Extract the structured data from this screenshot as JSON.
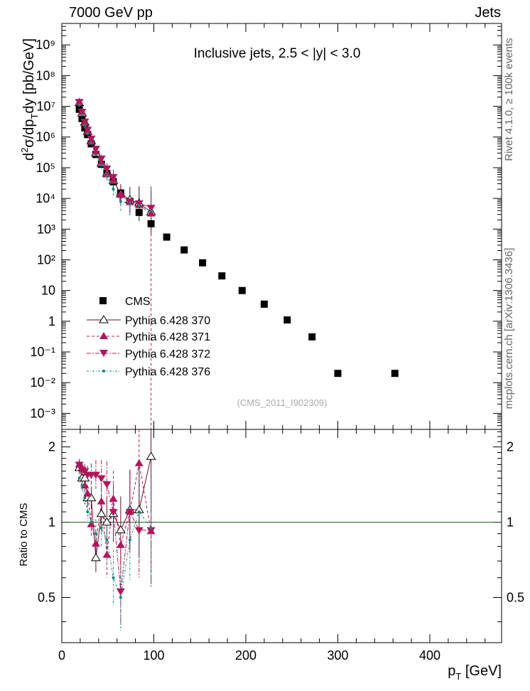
{
  "header": {
    "left": "7000 GeV pp",
    "right": "Jets"
  },
  "side": {
    "top": "Rivet 4.1.0, ≥ 100k events",
    "bottom": "mcplots.cern.ch [arXiv:1306.3436]"
  },
  "chart_data": [
    {
      "type": "scatter",
      "title": "Inclusive jets, 2.5 < |y| < 3.0",
      "watermark": "(CMS_2011_I902309)",
      "ylabel": "d²σ/dp_T dy [pb/GeV]",
      "yscale": "log",
      "ylim": [
        0.0003,
        5000000000
      ],
      "xlim": [
        0,
        478
      ],
      "ytick_labels": [
        "10⁻³",
        "10⁻²",
        "10⁻¹",
        "1",
        "10",
        "10²",
        "10³",
        "10⁴",
        "10⁵",
        "10⁶",
        "10⁷",
        "10⁸",
        "10⁹"
      ],
      "series": [
        {
          "name": "CMS",
          "marker": "square",
          "color": "#000000",
          "x": [
            19,
            22,
            25,
            28,
            32,
            37,
            43,
            49,
            56,
            64,
            74,
            84,
            97,
            114,
            133,
            153,
            174,
            196,
            220,
            245,
            272,
            300,
            362
          ],
          "y": [
            8000000,
            4000000,
            2000000,
            1200000,
            600000,
            270000,
            130000,
            65000,
            35000,
            15000,
            8000,
            3500,
            1500,
            550,
            210,
            80,
            30,
            10,
            3.6,
            1.1,
            0.31,
            0.02,
            0.02
          ]
        },
        {
          "name": "Pythia 6.428 370",
          "marker": "triangle-open",
          "color": "#6a0f2a",
          "x": [
            19,
            22,
            25,
            28,
            32,
            37,
            43,
            49,
            56,
            64,
            74,
            84,
            97
          ],
          "y": [
            13000000,
            6000000,
            3000000,
            1500000,
            750000,
            300000,
            140000,
            65000,
            38000,
            14000,
            9000,
            7000,
            3600
          ]
        },
        {
          "name": "Pythia 6.428 371",
          "marker": "triangle-up",
          "color": "#b0175a",
          "x": [
            19,
            22,
            25,
            28,
            32,
            37,
            43,
            49,
            56,
            64,
            74,
            84,
            97
          ],
          "y": [
            13500000,
            6500000,
            2800000,
            1500000,
            700000,
            330000,
            150000,
            60000,
            40000,
            13000,
            7500,
            6000,
            3200
          ]
        },
        {
          "name": "Pythia 6.428 372",
          "marker": "triangle-down",
          "color": "#b0175a",
          "x": [
            19,
            22,
            25,
            28,
            32,
            37,
            43,
            49,
            56,
            64,
            74,
            84,
            97
          ],
          "y": [
            14000000,
            6700000,
            3200000,
            1750000,
            900000,
            420000,
            200000,
            95000,
            50000,
            12000,
            8000,
            7000,
            5000
          ]
        },
        {
          "name": "Pythia 6.428 376",
          "marker": "dot",
          "color": "#0d8a7a",
          "x": [
            19,
            22,
            25,
            28,
            32,
            37,
            43,
            49,
            56,
            64,
            74,
            84,
            97
          ],
          "y": [
            11000000,
            5200000,
            2400000,
            1300000,
            620000,
            260000,
            120000,
            55000,
            20000,
            8000,
            7000,
            6000,
            4000
          ]
        }
      ]
    },
    {
      "type": "scatter",
      "ylabel": "Ratio to CMS",
      "xlabel": "p_T [GeV]",
      "yscale": "log",
      "ylim": [
        0.33,
        2.35
      ],
      "xlim": [
        0,
        478
      ],
      "ytick_labels": [
        "0.5",
        "1",
        "2"
      ],
      "xtick_labels": [
        "0",
        "100",
        "200",
        "300",
        "400"
      ],
      "series": [
        {
          "name": "Pythia 6.428 370",
          "x": [
            19,
            22,
            25,
            28,
            32,
            37,
            43,
            49,
            56,
            64,
            74,
            84,
            97
          ],
          "y": [
            1.65,
            1.5,
            1.5,
            1.25,
            1.25,
            0.72,
            1.08,
            1.0,
            1.08,
            0.93,
            1.12,
            1.12,
            1.83
          ]
        },
        {
          "name": "Pythia 6.428 371",
          "x": [
            19,
            22,
            25,
            28,
            32,
            37,
            43,
            49,
            56,
            64,
            74,
            84,
            97
          ],
          "y": [
            1.7,
            1.65,
            1.4,
            1.3,
            0.98,
            0.82,
            1.21,
            0.74,
            1.24,
            0.81,
            1.1,
            1.72,
            0.92
          ]
        },
        {
          "name": "Pythia 6.428 372",
          "x": [
            19,
            22,
            25,
            28,
            32,
            37,
            43,
            49,
            56,
            64,
            74,
            84,
            97
          ],
          "y": [
            1.7,
            1.62,
            1.6,
            1.55,
            1.55,
            1.55,
            1.5,
            1.42,
            1.1,
            0.53,
            1.1,
            0.93,
            0.93
          ]
        },
        {
          "name": "Pythia 6.428 376",
          "x": [
            19,
            22,
            25,
            28,
            32,
            37,
            43,
            49,
            56,
            64,
            74,
            84,
            97
          ],
          "y": [
            1.5,
            1.4,
            1.25,
            1.1,
            1.0,
            0.9,
            0.95,
            0.85,
            0.6,
            0.5,
            0.85,
            1.1,
            0.95
          ]
        }
      ]
    }
  ]
}
